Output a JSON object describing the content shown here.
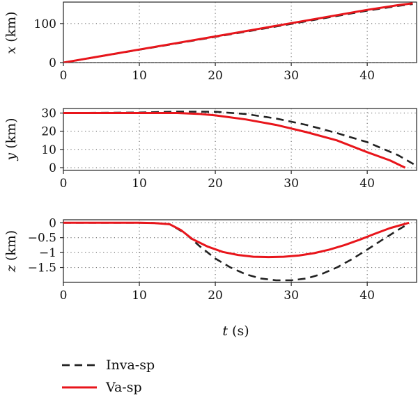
{
  "chart_data": [
    {
      "type": "line",
      "panel": "x",
      "xlabel": "",
      "ylabel": "x (km)",
      "ylabel_var": "x",
      "ylabel_unit": " (km)",
      "xlim": [
        0,
        46.5
      ],
      "ylim": [
        0,
        155
      ],
      "xticks": [
        0,
        10,
        20,
        30,
        40
      ],
      "xtick_labels": [
        "0",
        "10",
        "20",
        "30",
        "40"
      ],
      "yticks": [
        0,
        100
      ],
      "ytick_labels": [
        "0",
        "100"
      ],
      "grid": true,
      "series": [
        {
          "name": "Inva-sp",
          "style": "dashed",
          "color": "#222222",
          "x": [
            0,
            10,
            20,
            30,
            40,
            44,
            46
          ],
          "y": [
            0,
            33,
            66,
            99,
            133,
            145,
            150
          ]
        },
        {
          "name": "Va-sp",
          "style": "solid",
          "color": "#e8151b",
          "x": [
            0,
            10,
            20,
            30,
            40,
            44,
            46
          ],
          "y": [
            0,
            33.5,
            67,
            101,
            135,
            147,
            152
          ]
        }
      ]
    },
    {
      "type": "line",
      "panel": "y",
      "xlabel": "",
      "ylabel": "y (km)",
      "ylabel_var": "y",
      "ylabel_unit": " (km)",
      "xlim": [
        0,
        46.5
      ],
      "ylim": [
        -1.5,
        32.5
      ],
      "xticks": [
        0,
        10,
        20,
        30,
        40
      ],
      "xtick_labels": [
        "0",
        "10",
        "20",
        "30",
        "40"
      ],
      "yticks": [
        0,
        10,
        20,
        30
      ],
      "ytick_labels": [
        "0",
        "10",
        "20",
        "30"
      ],
      "grid": true,
      "series": [
        {
          "name": "Inva-sp",
          "style": "dashed",
          "color": "#222222",
          "x": [
            0,
            10,
            15,
            20,
            24,
            28,
            32,
            36,
            40,
            44,
            46.5
          ],
          "y": [
            30,
            30.3,
            30.8,
            30.7,
            29.5,
            27,
            23.5,
            19,
            14,
            7,
            1
          ]
        },
        {
          "name": "Va-sp",
          "style": "solid",
          "color": "#e8151b",
          "x": [
            0,
            10,
            15,
            18,
            20,
            24,
            28,
            32,
            36,
            40,
            43,
            45
          ],
          "y": [
            30,
            30,
            30,
            29.5,
            28.7,
            26.5,
            23.5,
            19.5,
            15,
            8.5,
            4,
            0
          ]
        }
      ]
    },
    {
      "type": "line",
      "panel": "z",
      "xlabel": "t (s)",
      "xlabel_var": "t",
      "xlabel_unit": " (s)",
      "ylabel": "z (km)",
      "ylabel_var": "z",
      "ylabel_unit": " (km)",
      "xlim": [
        0,
        46.5
      ],
      "ylim": [
        -2.0,
        0.1
      ],
      "xticks": [
        0,
        10,
        20,
        30,
        40
      ],
      "xtick_labels": [
        "0",
        "10",
        "20",
        "30",
        "40"
      ],
      "yticks": [
        0,
        -0.5,
        -1,
        -1.5
      ],
      "ytick_labels": [
        "0",
        "−0.5",
        "−1",
        "−1.5"
      ],
      "grid": true,
      "series": [
        {
          "name": "Inva-sp",
          "style": "dashed",
          "color": "#222222",
          "x": [
            0,
            10,
            12,
            14,
            16,
            18,
            20,
            22,
            24,
            26,
            28,
            30,
            32,
            34,
            36,
            38,
            40,
            42,
            44,
            45.5
          ],
          "y": [
            0,
            0,
            -0.01,
            -0.05,
            -0.35,
            -0.8,
            -1.2,
            -1.5,
            -1.73,
            -1.87,
            -1.93,
            -1.93,
            -1.87,
            -1.72,
            -1.5,
            -1.22,
            -0.9,
            -0.57,
            -0.25,
            -0.02
          ]
        },
        {
          "name": "Va-sp",
          "style": "solid",
          "color": "#e8151b",
          "x": [
            0,
            10,
            12,
            14,
            15.5,
            17,
            19,
            21,
            23,
            25,
            27,
            29,
            31,
            33,
            35,
            37,
            39,
            41,
            43,
            45.5
          ],
          "y": [
            0,
            0,
            -0.01,
            -0.05,
            -0.25,
            -0.55,
            -0.8,
            -0.98,
            -1.08,
            -1.14,
            -1.15,
            -1.14,
            -1.1,
            -1.02,
            -0.9,
            -0.75,
            -0.57,
            -0.37,
            -0.18,
            0
          ]
        }
      ]
    }
  ],
  "legend": {
    "position": "bottom-left",
    "items": [
      {
        "label": "Inva-sp",
        "style": "dashed",
        "color": "#222222"
      },
      {
        "label": "Va-sp",
        "style": "solid",
        "color": "#e8151b"
      }
    ]
  }
}
